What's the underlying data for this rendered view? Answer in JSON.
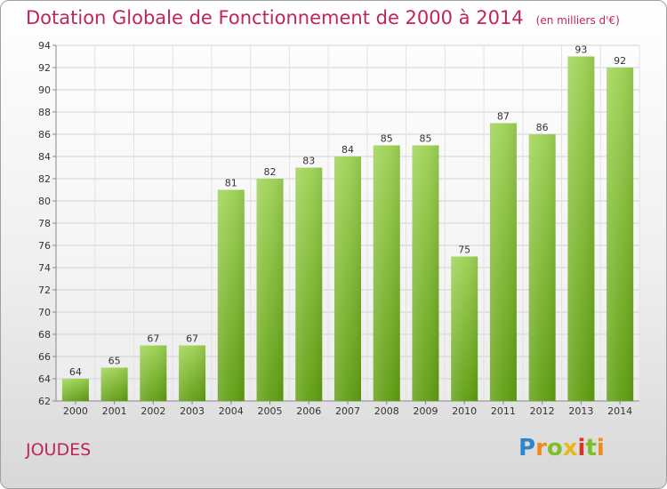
{
  "title": "Dotation Globale de Fonctionnement de 2000 à 2014",
  "unit_label": "(en milliers d'€)",
  "commune": "JOUDES",
  "logo_text": "Proxiti",
  "colors": {
    "title": "#c0245c",
    "bar_light": "#9ed254",
    "bar_dark": "#5f9e10"
  },
  "chart_data": {
    "type": "bar",
    "categories": [
      "2000",
      "2001",
      "2002",
      "2003",
      "2004",
      "2005",
      "2006",
      "2007",
      "2008",
      "2009",
      "2010",
      "2011",
      "2012",
      "2013",
      "2014"
    ],
    "values": [
      64,
      65,
      67,
      67,
      81,
      82,
      83,
      84,
      85,
      85,
      75,
      87,
      86,
      93,
      92
    ],
    "title": "Dotation Globale de Fonctionnement de 2000 à 2014",
    "ylim": [
      62,
      94
    ],
    "yticks": [
      62,
      64,
      66,
      68,
      70,
      72,
      74,
      76,
      78,
      80,
      82,
      84,
      86,
      88,
      90,
      92,
      94
    ],
    "grid": true
  }
}
